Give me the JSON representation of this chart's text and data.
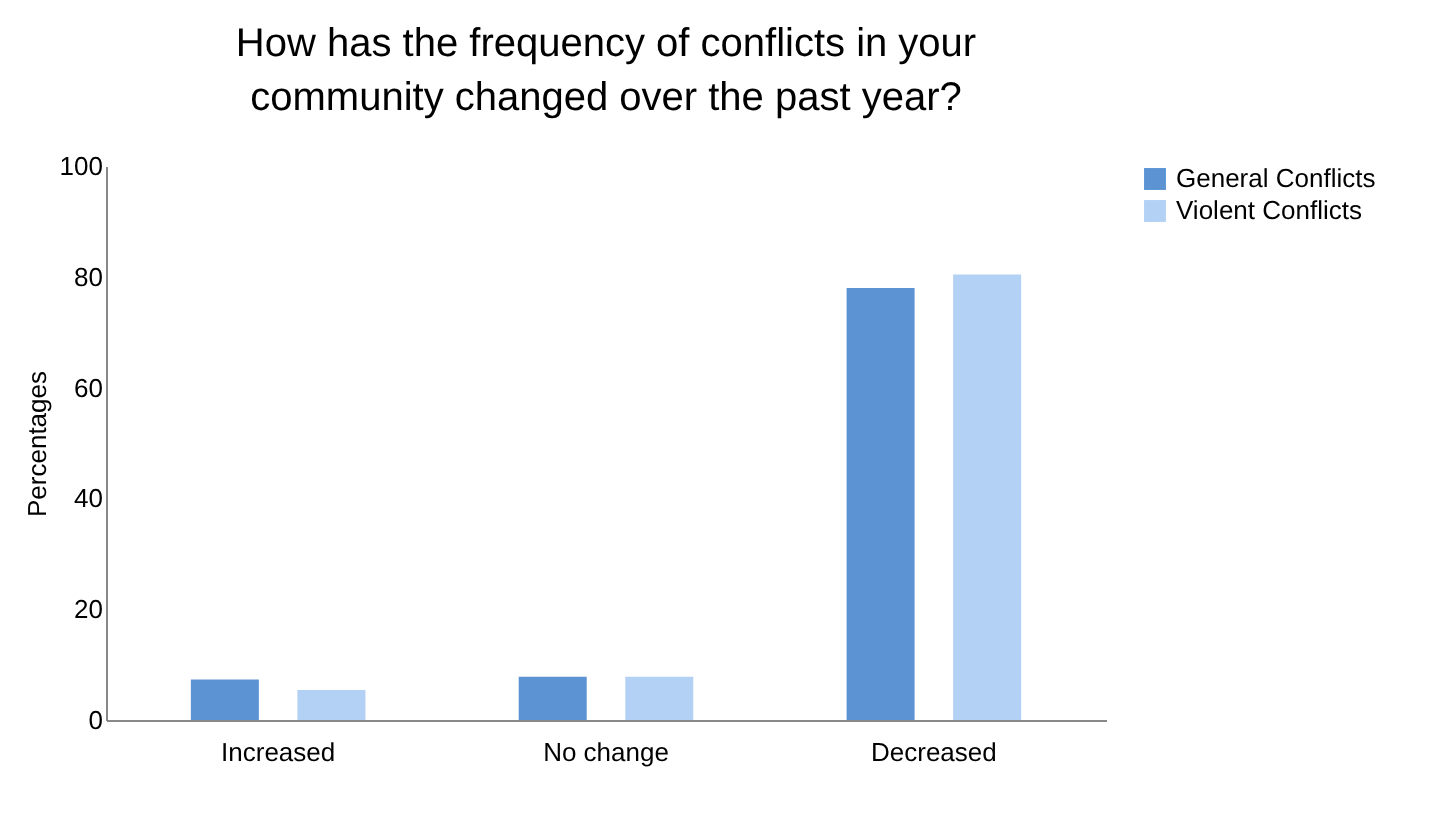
{
  "chart_data": {
    "type": "bar",
    "title": "How has the frequency of conflicts in your community changed over the past year?",
    "ylabel": "Percentages",
    "categories": [
      "Increased",
      "No change",
      "Decreased"
    ],
    "series": [
      {
        "name": "General Conflicts",
        "color": "#5b93d3",
        "values": [
          7.3,
          7.8,
          78
        ]
      },
      {
        "name": "Violent Conflicts",
        "color": "#b3d0f5",
        "values": [
          5.4,
          7.8,
          80.4
        ]
      }
    ],
    "ylim": [
      0,
      100
    ],
    "yticks": [
      0,
      20,
      40,
      60,
      80,
      100
    ],
    "grid": false,
    "legend": "right"
  }
}
